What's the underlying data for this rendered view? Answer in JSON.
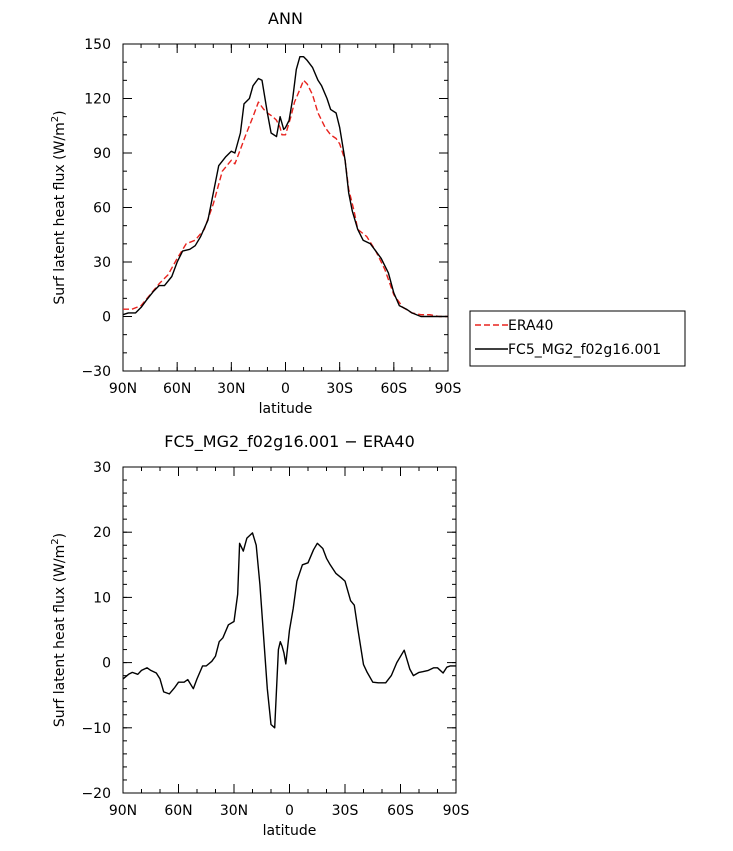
{
  "chart_data": [
    {
      "type": "line",
      "title": "ANN",
      "xlabel": "latitude",
      "ylabel": "Surf latent heat flux (W/m",
      "ylabel_sup": "2",
      "ylabel_tail": ")",
      "xlim": [
        90,
        -90
      ],
      "ylim": [
        -30,
        150
      ],
      "x_ticks": [
        {
          "value": 90,
          "label": "90N"
        },
        {
          "value": 60,
          "label": "60N"
        },
        {
          "value": 30,
          "label": "30N"
        },
        {
          "value": 0,
          "label": "0"
        },
        {
          "value": -30,
          "label": "30S"
        },
        {
          "value": -60,
          "label": "60S"
        },
        {
          "value": -90,
          "label": "90S"
        }
      ],
      "y_ticks": [
        {
          "value": 150,
          "label": "150"
        },
        {
          "value": 120,
          "label": "120"
        },
        {
          "value": 90,
          "label": "90"
        },
        {
          "value": 60,
          "label": "60"
        },
        {
          "value": 30,
          "label": "30"
        },
        {
          "value": 0,
          "label": "0"
        },
        {
          "value": -30,
          "label": "−30"
        }
      ],
      "legend": "outside-right",
      "series": [
        {
          "name": "ERA40",
          "color": "#e8231e",
          "dash": true,
          "x": [
            90,
            85,
            80,
            75,
            70,
            65,
            60,
            55,
            50,
            45,
            40,
            35,
            30,
            28,
            25,
            22,
            20,
            18,
            15,
            12,
            10,
            7,
            5,
            3,
            2,
            0,
            -3,
            -5,
            -8,
            -10,
            -12,
            -15,
            -18,
            -20,
            -22,
            -25,
            -28,
            -30,
            -33,
            -35,
            -38,
            -40,
            -45,
            -50,
            -55,
            -60,
            -65,
            -70,
            -75,
            -80,
            -85,
            -90
          ],
          "y": [
            4,
            4,
            6,
            12,
            18,
            23,
            32,
            40,
            42,
            48,
            62,
            80,
            86,
            84,
            92,
            100,
            105,
            110,
            118,
            114,
            112,
            110,
            108,
            104,
            100,
            100,
            110,
            118,
            125,
            130,
            128,
            122,
            112,
            108,
            104,
            100,
            98,
            95,
            86,
            70,
            58,
            48,
            44,
            36,
            26,
            12,
            5,
            2,
            1,
            1,
            0,
            0
          ]
        },
        {
          "name": "FC5_MG2_f02g16.001",
          "color": "#000000",
          "dash": false,
          "x": [
            90,
            87,
            83,
            80,
            77,
            73,
            70,
            67,
            63,
            60,
            57,
            53,
            50,
            47,
            43,
            40,
            37,
            33,
            30,
            28,
            25,
            23,
            20,
            18,
            15,
            13,
            10,
            8,
            5,
            3,
            1,
            0,
            -2,
            -4,
            -6,
            -8,
            -10,
            -12,
            -15,
            -18,
            -20,
            -23,
            -25,
            -28,
            -30,
            -33,
            -35,
            -37,
            -40,
            -43,
            -47,
            -50,
            -53,
            -57,
            -60,
            -63,
            -67,
            -70,
            -75,
            -80,
            -83,
            -87,
            -90
          ],
          "y": [
            1,
            2,
            2,
            5,
            9,
            14,
            17,
            17,
            22,
            30,
            36,
            37,
            39,
            44,
            53,
            68,
            83,
            88,
            91,
            90,
            101,
            117,
            120,
            127,
            131,
            130,
            112,
            101,
            99,
            110,
            103,
            104,
            108,
            120,
            136,
            143,
            143,
            141,
            137,
            130,
            127,
            120,
            114,
            112,
            104,
            86,
            68,
            58,
            48,
            42,
            40,
            36,
            32,
            24,
            13,
            6,
            4,
            2,
            0,
            0,
            0,
            0,
            0
          ]
        }
      ]
    },
    {
      "type": "line",
      "title": "FC5_MG2_f02g16.001  −  ERA40",
      "xlabel": "latitude",
      "ylabel": "Surf latent heat flux (W/m",
      "ylabel_sup": "2",
      "ylabel_tail": ")",
      "xlim": [
        90,
        -90
      ],
      "ylim": [
        -20,
        30
      ],
      "x_ticks": [
        {
          "value": 90,
          "label": "90N"
        },
        {
          "value": 60,
          "label": "60N"
        },
        {
          "value": 30,
          "label": "30N"
        },
        {
          "value": 0,
          "label": "0"
        },
        {
          "value": -30,
          "label": "30S"
        },
        {
          "value": -60,
          "label": "60S"
        },
        {
          "value": -90,
          "label": "90S"
        }
      ],
      "y_ticks": [
        {
          "value": 30,
          "label": "30"
        },
        {
          "value": 20,
          "label": "20"
        },
        {
          "value": 10,
          "label": "10"
        },
        {
          "value": 0,
          "label": "0"
        },
        {
          "value": -10,
          "label": "−10"
        },
        {
          "value": -20,
          "label": "−20"
        }
      ],
      "series": [
        {
          "color": "#000000",
          "x": [
            90,
            87,
            85,
            82,
            80,
            77,
            75,
            72,
            70,
            68,
            65,
            62,
            60,
            57,
            55,
            52,
            50,
            47,
            45,
            42,
            40,
            38,
            36,
            33,
            30,
            28,
            27,
            25,
            23,
            20,
            18,
            16,
            14,
            12,
            10,
            8,
            6,
            5,
            4,
            3,
            2,
            0,
            -2,
            -4,
            -7,
            -10,
            -13,
            -15,
            -18,
            -20,
            -22,
            -25,
            -28,
            -30,
            -33,
            -35,
            -37,
            -40,
            -42,
            -45,
            -48,
            -52,
            -55,
            -58,
            -62,
            -65,
            -67,
            -70,
            -72,
            -75,
            -78,
            -80,
            -83,
            -85,
            -87,
            -90
          ],
          "y": [
            -2.5,
            -1.8,
            -1.5,
            -1.8,
            -1.2,
            -0.8,
            -1.2,
            -1.6,
            -2.5,
            -4.5,
            -4.8,
            -3.8,
            -3,
            -3,
            -2.6,
            -4,
            -2.5,
            -0.5,
            -0.5,
            0.2,
            1,
            3.2,
            3.8,
            5.8,
            6.3,
            10.5,
            18.3,
            17.1,
            19.1,
            19.9,
            18,
            12,
            4,
            -4,
            -9.5,
            -10,
            2,
            3.2,
            2.5,
            1.5,
            -0.2,
            5,
            8.3,
            12.5,
            15,
            15.3,
            17.3,
            18.3,
            17.5,
            16,
            15,
            13.7,
            13,
            12.5,
            9.5,
            8.8,
            5,
            -0.3,
            -1.5,
            -3,
            -3.1,
            -3.1,
            -2,
            0,
            1.9,
            -1,
            -2,
            -1.5,
            -1.4,
            -1.2,
            -0.8,
            -0.8,
            -1.6,
            -0.7,
            -0.5,
            -0.5
          ]
        }
      ]
    }
  ]
}
